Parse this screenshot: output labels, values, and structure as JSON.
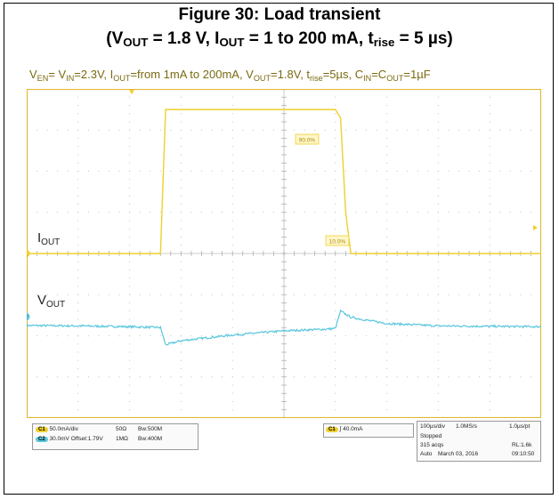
{
  "title": {
    "line1": "Figure 30: Load transient",
    "line2_parts": [
      "(V",
      "OUT",
      " = 1.8 V, I",
      "OUT",
      " = 1 to 200 mA, t",
      "rise",
      " = 5 µs)"
    ]
  },
  "conditions": {
    "parts": [
      "V",
      "EN",
      "= V",
      "IN",
      "=2.3V, I",
      "OUT",
      "=from 1mA to 200mA, V",
      "OUT",
      "=1.8V, t",
      "rise",
      "=5µs, C",
      "IN",
      "=C",
      "OUT",
      "=1µF"
    ]
  },
  "colors": {
    "ch1": "#f0cf2e",
    "ch2": "#59c6dc",
    "grid": "#c8c8c8",
    "border": "#e0b830"
  },
  "trace_labels": {
    "iout": {
      "base": "I",
      "sub": "OUT"
    },
    "vout": {
      "base": "V",
      "sub": "OUT"
    }
  },
  "markers": {
    "ch1": "1",
    "ch2": "2"
  },
  "cursor_labels": {
    "upper": "90.0%",
    "lower": "10.0%"
  },
  "status": {
    "ch1": {
      "chip": "C1",
      "scale": "50.0mA/div",
      "impedance": "50Ω",
      "bw": "Bw:500M"
    },
    "ch2": {
      "chip": "C2",
      "scale": "30.0mV",
      "offset": "Offset:1.79V",
      "impedance": "1MΩ",
      "bw": "Bw:400M"
    },
    "trigger": {
      "chip": "C1",
      "level": "40.0mA"
    },
    "timebase": {
      "div": "100µs/div",
      "rate": "1.0MS/s",
      "pt": "1.0µs/pt",
      "state": "Stopped",
      "acqs": "315 acqs",
      "rl": "RL:1.6k",
      "mode": "Auto",
      "date": "March 03, 2016",
      "time": "09:10:50"
    }
  },
  "chart_data": {
    "type": "line",
    "title": "Figure 30: Load transient",
    "xlabel": "",
    "ylabel": "",
    "x_divisions": 10,
    "y_divisions": 8,
    "x_div_label": "100µs/div",
    "series": [
      {
        "name": "IOUT",
        "channel": "C1",
        "units": "div",
        "x": [
          0,
          2.6,
          2.7,
          6.0,
          6.1,
          6.2,
          6.3,
          10
        ],
        "values": [
          0.0,
          0.0,
          3.5,
          3.5,
          3.3,
          1.0,
          0.0,
          0.0
        ]
      },
      {
        "name": "VOUT",
        "channel": "C2",
        "units": "div",
        "x": [
          0,
          1.0,
          2.0,
          2.6,
          2.7,
          3.0,
          4.0,
          5.0,
          5.8,
          6.0,
          6.1,
          6.3,
          6.6,
          7.0,
          8.0,
          9.0,
          10
        ],
        "values": [
          -1.75,
          -1.76,
          -1.78,
          -1.8,
          -2.22,
          -2.12,
          -1.98,
          -1.88,
          -1.84,
          -1.82,
          -1.4,
          -1.55,
          -1.62,
          -1.7,
          -1.76,
          -1.77,
          -1.78
        ]
      }
    ]
  }
}
